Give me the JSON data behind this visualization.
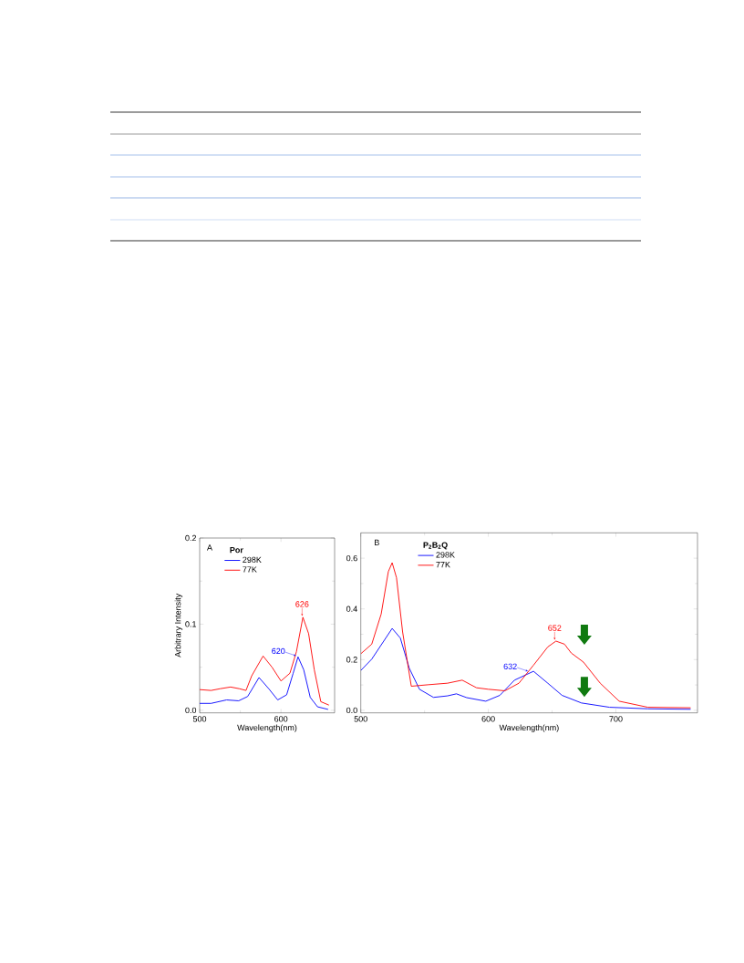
{
  "chart_data": [
    {
      "type": "line",
      "xlabel": "Wavelength(nm)",
      "ylabel": "Arbitrary Intensity",
      "legend_title": "Por",
      "legend": "top left",
      "xlim": [
        500,
        666
      ],
      "ylim": [
        -0.003,
        0.2
      ],
      "xticks": [
        500,
        600
      ],
      "yticks": [
        {
          "value": 0,
          "label": "0.0"
        },
        {
          "value": 0.1,
          "label": "0.1"
        },
        {
          "value": 0.2,
          "label": "0.2"
        }
      ],
      "annotations": [
        "A",
        {
          "text": "620",
          "x": 620,
          "y": 0.062
        },
        {
          "text": "626",
          "x": 626,
          "y": 0.108
        }
      ],
      "series": [
        {
          "name": "298K",
          "color": "#0000ff",
          "x": [
            500,
            514,
            533,
            548,
            559,
            573,
            585,
            596,
            607,
            615,
            621,
            628,
            636,
            645,
            658
          ],
          "values": [
            0.008,
            0.008,
            0.012,
            0.011,
            0.016,
            0.038,
            0.025,
            0.012,
            0.018,
            0.043,
            0.062,
            0.047,
            0.015,
            0.004,
            0.001
          ]
        },
        {
          "name": "77K",
          "color": "#ff0000",
          "x": [
            500,
            514,
            525,
            538,
            549,
            557,
            564,
            578,
            589,
            600,
            611,
            619,
            627,
            634,
            641,
            649,
            659
          ],
          "values": [
            0.024,
            0.023,
            0.025,
            0.027,
            0.025,
            0.023,
            0.04,
            0.063,
            0.05,
            0.034,
            0.043,
            0.068,
            0.108,
            0.089,
            0.047,
            0.01,
            0.006
          ]
        }
      ]
    },
    {
      "type": "line",
      "xlabel": "Wavelength(nm)",
      "legend_title": "**P$_{2}$B$_{2}$Q**",
      "legend": "top left",
      "xlim": [
        500,
        764
      ],
      "ylim": [
        -0.01,
        0.7
      ],
      "xticks": [
        500,
        600,
        700
      ],
      "yticks": [
        {
          "value": 0,
          "label": "0.0"
        },
        {
          "value": 0.2,
          "label": "0.2"
        },
        {
          "value": 0.4,
          "label": "0.4"
        },
        {
          "value": 0.6,
          "label": "0.6"
        }
      ],
      "annotations": [
        "B",
        {
          "text": "632",
          "x": 632,
          "y": 0.15
        },
        {
          "text": "652",
          "x": 652,
          "y": 0.273
        }
      ],
      "series": [
        {
          "name": "298K",
          "color": "#0000ff",
          "x": [
            500,
            508.6,
            518,
            524.6,
            531,
            538,
            546,
            557,
            568,
            575,
            583,
            598,
            609,
            620.5,
            635.4,
            646.6,
            657.8,
            673,
            695,
            725,
            758.6
          ],
          "values": [
            0.157,
            0.202,
            0.273,
            0.323,
            0.285,
            0.166,
            0.083,
            0.051,
            0.057,
            0.065,
            0.05,
            0.036,
            0.059,
            0.119,
            0.154,
            0.107,
            0.059,
            0.029,
            0.012,
            0.006,
            0.004
          ]
        },
        {
          "name": "77K",
          "color": "#ff0000",
          "x": [
            500,
            508.6,
            516,
            521.6,
            524.6,
            528,
            532.8,
            539.6,
            553,
            568,
            579.5,
            590.7,
            600,
            613,
            624,
            635.4,
            646.6,
            653,
            659.7,
            665,
            674.6,
            687.7,
            702.6,
            725,
            758.6
          ],
          "values": [
            0.223,
            0.261,
            0.38,
            0.547,
            0.582,
            0.523,
            0.309,
            0.095,
            0.101,
            0.107,
            0.119,
            0.089,
            0.083,
            0.077,
            0.107,
            0.178,
            0.25,
            0.273,
            0.261,
            0.226,
            0.19,
            0.107,
            0.036,
            0.012,
            0.01
          ]
        }
      ]
    }
  ]
}
